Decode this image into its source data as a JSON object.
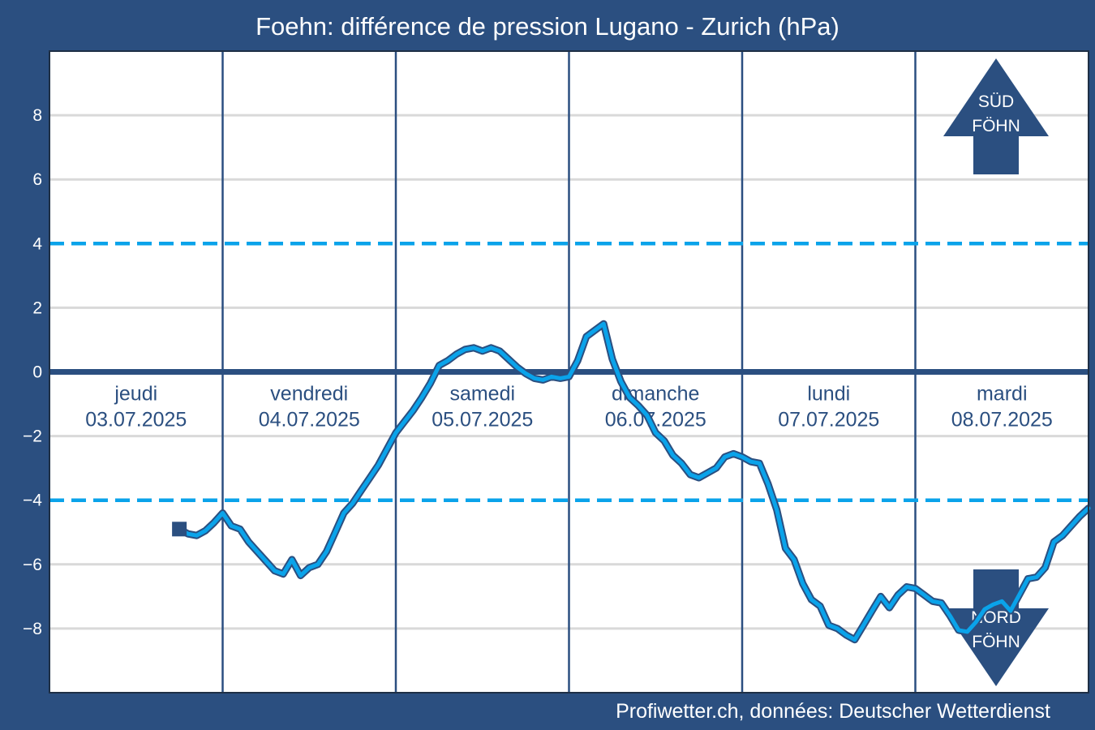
{
  "chart_data": {
    "type": "line",
    "title": "Foehn: différence de pression Lugano - Zurich (hPa)",
    "credit": "Profiwetter.ch, données: Deutscher Wetterdienst",
    "ylim": [
      -10,
      10
    ],
    "yticks": [
      {
        "value": 8,
        "label": "8"
      },
      {
        "value": 6,
        "label": "6"
      },
      {
        "value": 4,
        "label": "4"
      },
      {
        "value": 2,
        "label": "2"
      },
      {
        "value": 0,
        "label": "0"
      },
      {
        "value": -2,
        "label": "−2"
      },
      {
        "value": -4,
        "label": "−4"
      },
      {
        "value": -6,
        "label": "−6"
      },
      {
        "value": -8,
        "label": "−8"
      }
    ],
    "grid": true,
    "xlim_days": [
      0,
      6
    ],
    "days": [
      {
        "name": "jeudi",
        "date": "03.07.2025"
      },
      {
        "name": "vendredi",
        "date": "04.07.2025"
      },
      {
        "name": "samedi",
        "date": "05.07.2025"
      },
      {
        "name": "dimanche",
        "date": "06.07.2025"
      },
      {
        "name": "lundi",
        "date": "07.07.2025"
      },
      {
        "name": "mardi",
        "date": "08.07.2025"
      }
    ],
    "threshold_lines": [
      4,
      -4
    ],
    "zero_line": 0,
    "arrows": [
      {
        "direction": "up",
        "line1": "SÜD",
        "line2": "FÖHN"
      },
      {
        "direction": "down",
        "line1": "NORD",
        "line2": "FÖHN"
      }
    ],
    "colors": {
      "frame": "#2b4f80",
      "plot_background": "#ffffff",
      "line": "#0aa3ea",
      "line_outline": "#2b4f80",
      "threshold": "#0aa3ea",
      "grid": "#d9d9d9",
      "arrow": "#2b4f80"
    },
    "series": [
      {
        "x": [
          0.75,
          0.8,
          0.85,
          0.9,
          0.95,
          1.0,
          1.05,
          1.1,
          1.15,
          1.2,
          1.25,
          1.3,
          1.35,
          1.4,
          1.45,
          1.5,
          1.55,
          1.6,
          1.65,
          1.7,
          1.75,
          1.8,
          1.85,
          1.9,
          1.95,
          2.0,
          2.05,
          2.1,
          2.15,
          2.2,
          2.25,
          2.3,
          2.35,
          2.4,
          2.45,
          2.5,
          2.55,
          2.6,
          2.65,
          2.7,
          2.75,
          2.8,
          2.85,
          2.9,
          2.95,
          3.0,
          3.05,
          3.1,
          3.15,
          3.2,
          3.25,
          3.3,
          3.35,
          3.4,
          3.45,
          3.5,
          3.55,
          3.6,
          3.65,
          3.7,
          3.75,
          3.8,
          3.85,
          3.9,
          3.95,
          4.0,
          4.05,
          4.1,
          4.15,
          4.2,
          4.25,
          4.3,
          4.35,
          4.4,
          4.45,
          4.5,
          4.55,
          4.6,
          4.65,
          4.7,
          4.75,
          4.8,
          4.85,
          4.9,
          4.95,
          5.0,
          5.05,
          5.1,
          5.15,
          5.2,
          5.25,
          5.3,
          5.35,
          5.4,
          5.45,
          5.5,
          5.55,
          5.6,
          5.65,
          5.7,
          5.75,
          5.8,
          5.85,
          5.9,
          5.95,
          6.0
        ],
        "y": [
          -4.9,
          -5.05,
          -5.1,
          -4.95,
          -4.7,
          -4.4,
          -4.8,
          -4.9,
          -5.3,
          -5.6,
          -5.9,
          -6.2,
          -6.3,
          -5.85,
          -6.35,
          -6.1,
          -6.0,
          -5.6,
          -5.0,
          -4.4,
          -4.1,
          -3.7,
          -3.3,
          -2.9,
          -2.4,
          -1.9,
          -1.55,
          -1.2,
          -0.8,
          -0.35,
          0.2,
          0.35,
          0.55,
          0.7,
          0.75,
          0.65,
          0.75,
          0.65,
          0.4,
          0.15,
          -0.05,
          -0.2,
          -0.25,
          -0.15,
          -0.2,
          -0.15,
          0.35,
          1.1,
          1.3,
          1.5,
          0.4,
          -0.3,
          -0.8,
          -1.05,
          -1.35,
          -1.9,
          -2.15,
          -2.6,
          -2.85,
          -3.2,
          -3.3,
          -3.15,
          -3.0,
          -2.65,
          -2.55,
          -2.65,
          -2.8,
          -2.85,
          -3.5,
          -4.3,
          -5.5,
          -5.85,
          -6.6,
          -7.1,
          -7.3,
          -7.9,
          -8.0,
          -8.2,
          -8.35,
          -7.9,
          -7.45,
          -7.0,
          -7.35,
          -6.95,
          -6.7,
          -6.75,
          -6.95,
          -7.15,
          -7.2,
          -7.6,
          -8.05,
          -8.1,
          -7.8,
          -7.4,
          -7.25,
          -7.15,
          -7.45,
          -6.95,
          -6.45,
          -6.4,
          -6.1,
          -5.3,
          -5.1,
          -4.8,
          -4.5,
          -4.25
        ]
      }
    ]
  }
}
